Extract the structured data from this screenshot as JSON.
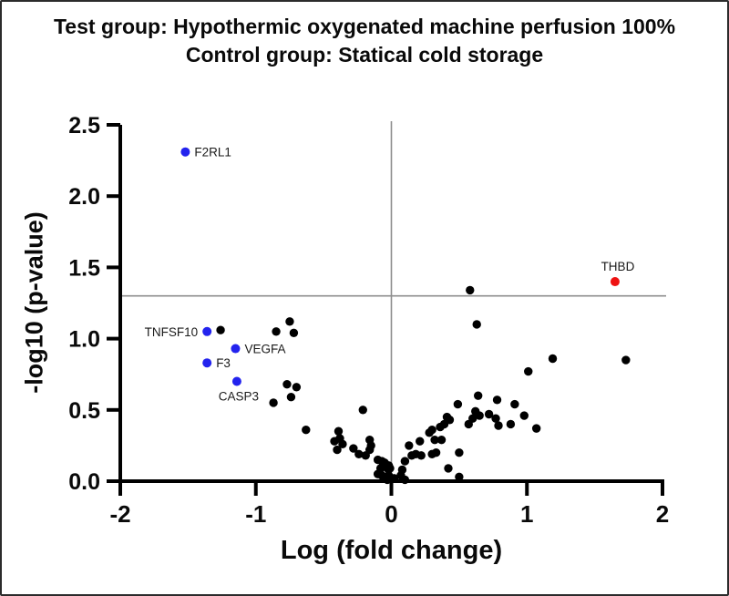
{
  "figure": {
    "kind": "volcano-plot"
  },
  "chart_data": {
    "type": "scatter",
    "title_lines": [
      "Test group: Hypothermic oxygenated machine perfusion 100%",
      "Control group: Statical cold storage"
    ],
    "xlabel": "Log (fold change)",
    "ylabel": "-log10 (p-value)",
    "xlim": [
      -2,
      2
    ],
    "ylim": [
      0,
      2.5
    ],
    "x_tick_values": [
      -2,
      -1,
      0,
      1,
      2
    ],
    "x_tick_labels": [
      "-2",
      "-1",
      "0",
      "1",
      "2"
    ],
    "y_tick_values": [
      0,
      0.5,
      1,
      1.5,
      2,
      2.5
    ],
    "y_tick_labels": [
      "0.0",
      "0.5",
      "1.0",
      "1.5",
      "2.0",
      "2.5"
    ],
    "grid": false,
    "legend": "none",
    "significance_line_y": 1.3,
    "zero_fold_change_line_x": 0,
    "colors": {
      "point_default": "#000000",
      "point_down_significant": "#2323ee",
      "point_up_significant": "#ee1212",
      "reference_lines": "#8e8e8e",
      "axis": "#000000",
      "text": "#0a0a0a"
    },
    "labeled_points": [
      {
        "gene": "F2RL1",
        "x": -1.52,
        "y": 2.31,
        "color": "#2323ee",
        "label_side": "right"
      },
      {
        "gene": "TNFSF10",
        "x": -1.36,
        "y": 1.05,
        "color": "#2323ee",
        "label_side": "left"
      },
      {
        "gene": "VEGFA",
        "x": -1.15,
        "y": 0.93,
        "color": "#2323ee",
        "label_side": "right"
      },
      {
        "gene": "F3",
        "x": -1.36,
        "y": 0.83,
        "color": "#2323ee",
        "label_side": "right"
      },
      {
        "gene": "CASP3",
        "x": -1.14,
        "y": 0.7,
        "color": "#2323ee",
        "label_side": "below"
      },
      {
        "gene": "THBD",
        "x": 1.65,
        "y": 1.4,
        "color": "#ee1212",
        "label_side": "above"
      }
    ],
    "points": [
      [
        -1.26,
        1.06
      ],
      [
        -0.85,
        1.05
      ],
      [
        -0.75,
        1.12
      ],
      [
        -0.72,
        1.04
      ],
      [
        0.58,
        1.34
      ],
      [
        0.63,
        1.1
      ],
      [
        -0.77,
        0.68
      ],
      [
        -0.7,
        0.66
      ],
      [
        -0.74,
        0.59
      ],
      [
        -0.87,
        0.55
      ],
      [
        -0.21,
        0.5
      ],
      [
        -0.63,
        0.36
      ],
      [
        -0.39,
        0.35
      ],
      [
        -0.38,
        0.3
      ],
      [
        -0.42,
        0.28
      ],
      [
        -0.36,
        0.26
      ],
      [
        -0.28,
        0.23
      ],
      [
        -0.4,
        0.22
      ],
      [
        -0.24,
        0.19
      ],
      [
        -0.16,
        0.29
      ],
      [
        -0.15,
        0.25
      ],
      [
        -0.16,
        0.22
      ],
      [
        -0.19,
        0.18
      ],
      [
        -0.1,
        0.15
      ],
      [
        -0.07,
        0.14
      ],
      [
        -0.05,
        0.13
      ],
      [
        -0.02,
        0.11
      ],
      [
        -0.08,
        0.09
      ],
      [
        -0.03,
        0.09
      ],
      [
        -0.01,
        0.09
      ],
      [
        -0.1,
        0.05
      ],
      [
        -0.02,
        0.04
      ],
      [
        -0.07,
        0.04
      ],
      [
        0.02,
        0.02
      ],
      [
        -0.03,
        0.01
      ],
      [
        0.1,
        0.01
      ],
      [
        0.07,
        0.04
      ],
      [
        0.08,
        0.08
      ],
      [
        0.1,
        0.14
      ],
      [
        0.13,
        0.25
      ],
      [
        0.15,
        0.18
      ],
      [
        0.18,
        0.19
      ],
      [
        0.22,
        0.18
      ],
      [
        0.3,
        0.19
      ],
      [
        0.33,
        0.2
      ],
      [
        0.21,
        0.28
      ],
      [
        0.32,
        0.29
      ],
      [
        0.28,
        0.34
      ],
      [
        0.3,
        0.36
      ],
      [
        0.36,
        0.38
      ],
      [
        0.37,
        0.29
      ],
      [
        0.39,
        0.4
      ],
      [
        0.41,
        0.45
      ],
      [
        0.43,
        0.43
      ],
      [
        0.42,
        0.09
      ],
      [
        0.5,
        0.03
      ],
      [
        0.5,
        0.2
      ],
      [
        0.49,
        0.54
      ],
      [
        0.57,
        0.4
      ],
      [
        0.6,
        0.44
      ],
      [
        0.62,
        0.49
      ],
      [
        0.65,
        0.46
      ],
      [
        0.72,
        0.47
      ],
      [
        0.77,
        0.44
      ],
      [
        0.64,
        0.6
      ],
      [
        0.78,
        0.57
      ],
      [
        0.79,
        0.39
      ],
      [
        0.88,
        0.4
      ],
      [
        0.91,
        0.54
      ],
      [
        0.98,
        0.46
      ],
      [
        1.07,
        0.37
      ],
      [
        1.01,
        0.77
      ],
      [
        1.19,
        0.86
      ],
      [
        1.73,
        0.85
      ]
    ]
  }
}
